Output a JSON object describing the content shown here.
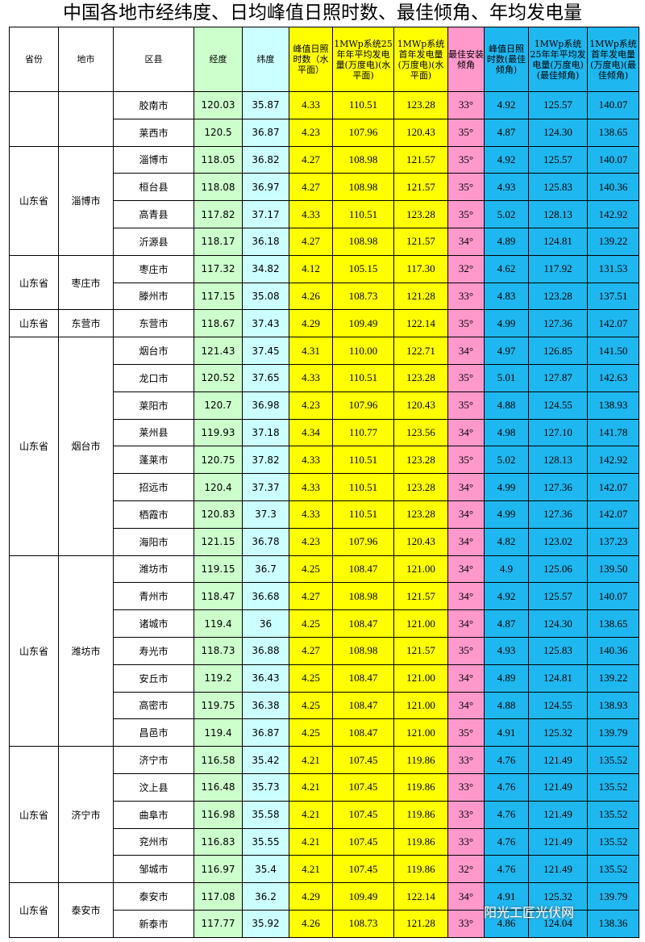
{
  "title": "中国各地市经纬度、日均峰值日照时数、最佳倾角、年均发电量",
  "header": [
    "省份",
    "地市",
    "区县",
    "经度",
    "纬度",
    "峰值日照时数（水平面）",
    "1MWp系统25年年平均发电量(万度电)(水平面)",
    "1MWp系统首年发电量(万度电)(水平面)",
    "最佳安装倾角",
    "峰值日照时数(最佳倾角)",
    "1MWp系统25年年平均发电量(万度电)(最佳倾角)",
    "1MWp系统首年发电量(万度电)(最佳倾角)"
  ],
  "groups": [
    {
      "rows": [
        [
          "胶南市",
          "120.03",
          "35.87",
          "4.33",
          "110.51",
          "123.28",
          "33°",
          "4.92",
          "125.57",
          "140.07"
        ],
        [
          "莱西市",
          "120.5",
          "36.87",
          "4.23",
          "107.96",
          "120.43",
          "35°",
          "4.87",
          "124.30",
          "138.65"
        ]
      ]
    },
    {
      "province": "山东省",
      "city": "淄博市",
      "rows": [
        [
          "淄博市",
          "118.05",
          "36.82",
          "4.27",
          "108.98",
          "121.57",
          "35°",
          "4.92",
          "125.57",
          "140.07"
        ],
        [
          "桓台县",
          "118.08",
          "36.97",
          "4.27",
          "108.98",
          "121.57",
          "35°",
          "4.93",
          "125.83",
          "140.36"
        ],
        [
          "高青县",
          "117.82",
          "37.17",
          "4.33",
          "110.51",
          "123.28",
          "35°",
          "5.02",
          "128.13",
          "142.92"
        ],
        [
          "沂源县",
          "118.17",
          "36.18",
          "4.27",
          "108.98",
          "121.57",
          "34°",
          "4.89",
          "124.81",
          "139.22"
        ]
      ]
    },
    {
      "province": "山东省",
      "city": "枣庄市",
      "rows": [
        [
          "枣庄市",
          "117.32",
          "34.82",
          "4.12",
          "105.15",
          "117.30",
          "32°",
          "4.62",
          "117.92",
          "131.53"
        ],
        [
          "滕州市",
          "117.15",
          "35.08",
          "4.26",
          "108.73",
          "121.28",
          "33°",
          "4.83",
          "123.28",
          "137.51"
        ]
      ]
    },
    {
      "province": "山东省",
      "city": "东营市",
      "rows": [
        [
          "东营市",
          "118.67",
          "37.43",
          "4.29",
          "109.49",
          "122.14",
          "35°",
          "4.99",
          "127.36",
          "142.07"
        ]
      ]
    },
    {
      "province": "山东省",
      "city": "烟台市",
      "rows": [
        [
          "烟台市",
          "121.43",
          "37.45",
          "4.31",
          "110.00",
          "122.71",
          "34°",
          "4.97",
          "126.85",
          "141.50"
        ],
        [
          "龙口市",
          "120.52",
          "37.65",
          "4.33",
          "110.51",
          "123.28",
          "35°",
          "5.01",
          "127.87",
          "142.63"
        ],
        [
          "莱阳市",
          "120.7",
          "36.98",
          "4.23",
          "107.96",
          "120.43",
          "35°",
          "4.88",
          "124.55",
          "138.93"
        ],
        [
          "莱州县",
          "119.93",
          "37.18",
          "4.34",
          "110.77",
          "123.56",
          "34°",
          "4.98",
          "127.10",
          "141.78"
        ],
        [
          "蓬莱市",
          "120.75",
          "37.82",
          "4.33",
          "110.51",
          "123.28",
          "35°",
          "5.02",
          "128.13",
          "142.92"
        ],
        [
          "招远市",
          "120.4",
          "37.37",
          "4.33",
          "110.51",
          "123.28",
          "34°",
          "4.99",
          "127.36",
          "142.07"
        ],
        [
          "栖霞市",
          "120.83",
          "37.3",
          "4.33",
          "110.51",
          "123.28",
          "34°",
          "4.99",
          "127.36",
          "142.07"
        ],
        [
          "海阳市",
          "121.15",
          "36.78",
          "4.23",
          "107.96",
          "120.43",
          "34°",
          "4.82",
          "123.02",
          "137.23"
        ]
      ]
    },
    {
      "province": "山东省",
      "city": "潍坊市",
      "rows": [
        [
          "潍坊市",
          "119.15",
          "36.7",
          "4.25",
          "108.47",
          "121.00",
          "34°",
          "4.9",
          "125.06",
          "139.50"
        ],
        [
          "青州市",
          "118.47",
          "36.68",
          "4.27",
          "108.98",
          "121.57",
          "34°",
          "4.92",
          "125.57",
          "140.07"
        ],
        [
          "诸城市",
          "119.4",
          "36",
          "4.25",
          "108.47",
          "121.00",
          "34°",
          "4.87",
          "124.30",
          "138.65"
        ],
        [
          "寿光市",
          "118.73",
          "36.88",
          "4.27",
          "108.98",
          "121.57",
          "35°",
          "4.93",
          "125.83",
          "140.36"
        ],
        [
          "安丘市",
          "119.2",
          "36.43",
          "4.25",
          "108.47",
          "121.00",
          "34°",
          "4.89",
          "124.81",
          "139.22"
        ],
        [
          "高密市",
          "119.75",
          "36.38",
          "4.25",
          "108.47",
          "121.00",
          "34°",
          "4.88",
          "124.55",
          "138.93"
        ],
        [
          "昌邑市",
          "119.4",
          "36.87",
          "4.25",
          "108.47",
          "121.00",
          "35°",
          "4.91",
          "125.32",
          "139.79"
        ]
      ]
    },
    {
      "province": "山东省",
      "city": "济宁市",
      "rows": [
        [
          "济宁市",
          "116.58",
          "35.42",
          "4.21",
          "107.45",
          "119.86",
          "33°",
          "4.76",
          "121.49",
          "135.52"
        ],
        [
          "汶上县",
          "116.48",
          "35.73",
          "4.21",
          "107.45",
          "119.86",
          "33°",
          "4.76",
          "121.49",
          "135.52"
        ],
        [
          "曲阜市",
          "116.98",
          "35.58",
          "4.21",
          "107.45",
          "119.86",
          "33°",
          "4.76",
          "121.49",
          "135.52"
        ],
        [
          "兖州市",
          "116.83",
          "35.55",
          "4.21",
          "107.45",
          "119.86",
          "33°",
          "4.76",
          "121.49",
          "135.52"
        ],
        [
          "邹城市",
          "116.97",
          "35.4",
          "4.21",
          "107.45",
          "119.86",
          "32°",
          "4.76",
          "121.49",
          "135.52"
        ]
      ]
    },
    {
      "province": "山东省",
      "city": "泰安市",
      "rows": [
        [
          "泰安市",
          "117.08",
          "36.2",
          "4.29",
          "109.49",
          "122.14",
          "34°",
          "4.91",
          "125.32",
          "139.79"
        ],
        [
          "新泰市",
          "117.77",
          "35.92",
          "4.26",
          "108.73",
          "121.28",
          "33°",
          "4.86",
          "124.04",
          "138.36"
        ]
      ]
    }
  ],
  "watermark": "阳光工匠光伏网"
}
